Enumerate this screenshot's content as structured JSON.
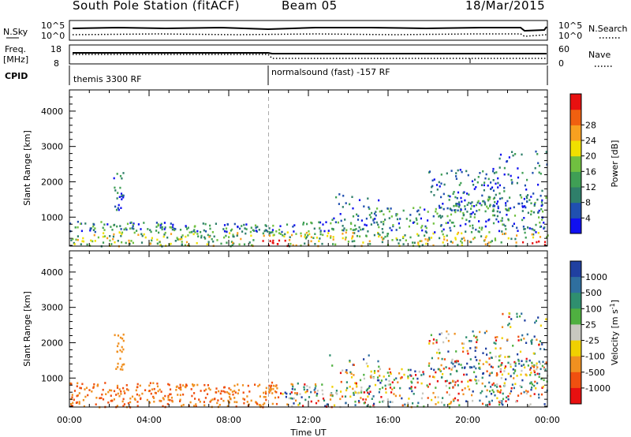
{
  "header": {
    "station": "South Pole Station (fitACF)",
    "beam": "Beam 05",
    "date": "18/Mar/2015"
  },
  "status_panels": {
    "noise": {
      "left_label": "N.Sky",
      "right_label": "N.Search",
      "left_ticks": [
        "10^5",
        "10^0"
      ],
      "right_ticks": [
        "10^5",
        "10^0"
      ]
    },
    "frequency": {
      "left_label_line1": "Freq.",
      "left_label_line2": "[MHz]",
      "left_ticks": [
        "18",
        "8"
      ],
      "right_label": "Nave",
      "right_ticks": [
        "60",
        "0"
      ]
    },
    "cpid": {
      "label": "CPID",
      "segments": [
        {
          "text": "themis 3300 RF",
          "start_hour": 0
        },
        {
          "text": "normalsound (fast) -157 RF",
          "start_hour": 10
        }
      ]
    }
  },
  "chart_data": [
    {
      "type": "heatmap",
      "name": "power",
      "ylabel": "Slant Range [km]",
      "yticks": [
        1000,
        2000,
        3000,
        4000
      ],
      "ylim": [
        180,
        4600
      ],
      "xlim_hours": [
        0,
        24
      ],
      "colorbar": {
        "label": "Power [dB]",
        "ticks": [
          "4",
          "8",
          "12",
          "16",
          "20",
          "24",
          "28"
        ],
        "colors": [
          "#1010f0",
          "#2050b0",
          "#2f7f6a",
          "#3f9f55",
          "#70c040",
          "#f0e000",
          "#f8a020",
          "#f06010",
          "#e81010"
        ]
      }
    },
    {
      "type": "heatmap",
      "name": "velocity",
      "ylabel": "Slant Range [km]",
      "xlabel": "Time UT",
      "yticks": [
        1000,
        2000,
        3000,
        4000
      ],
      "ylim": [
        180,
        4600
      ],
      "xlim_hours": [
        0,
        24
      ],
      "xticks": [
        "00:00",
        "04:00",
        "08:00",
        "12:00",
        "16:00",
        "20:00",
        "00:00"
      ],
      "colorbar": {
        "label": "Velocity [m s-1]",
        "ticks": [
          "1000",
          "500",
          "100",
          "25",
          "-25",
          "-100",
          "-500",
          "-1000"
        ],
        "colors": [
          "#2040a0",
          "#2f6f9f",
          "#2f8f6f",
          "#4fb040",
          "#c8c8c0",
          "#f0d000",
          "#f09020",
          "#f05010",
          "#e81010"
        ]
      }
    }
  ]
}
